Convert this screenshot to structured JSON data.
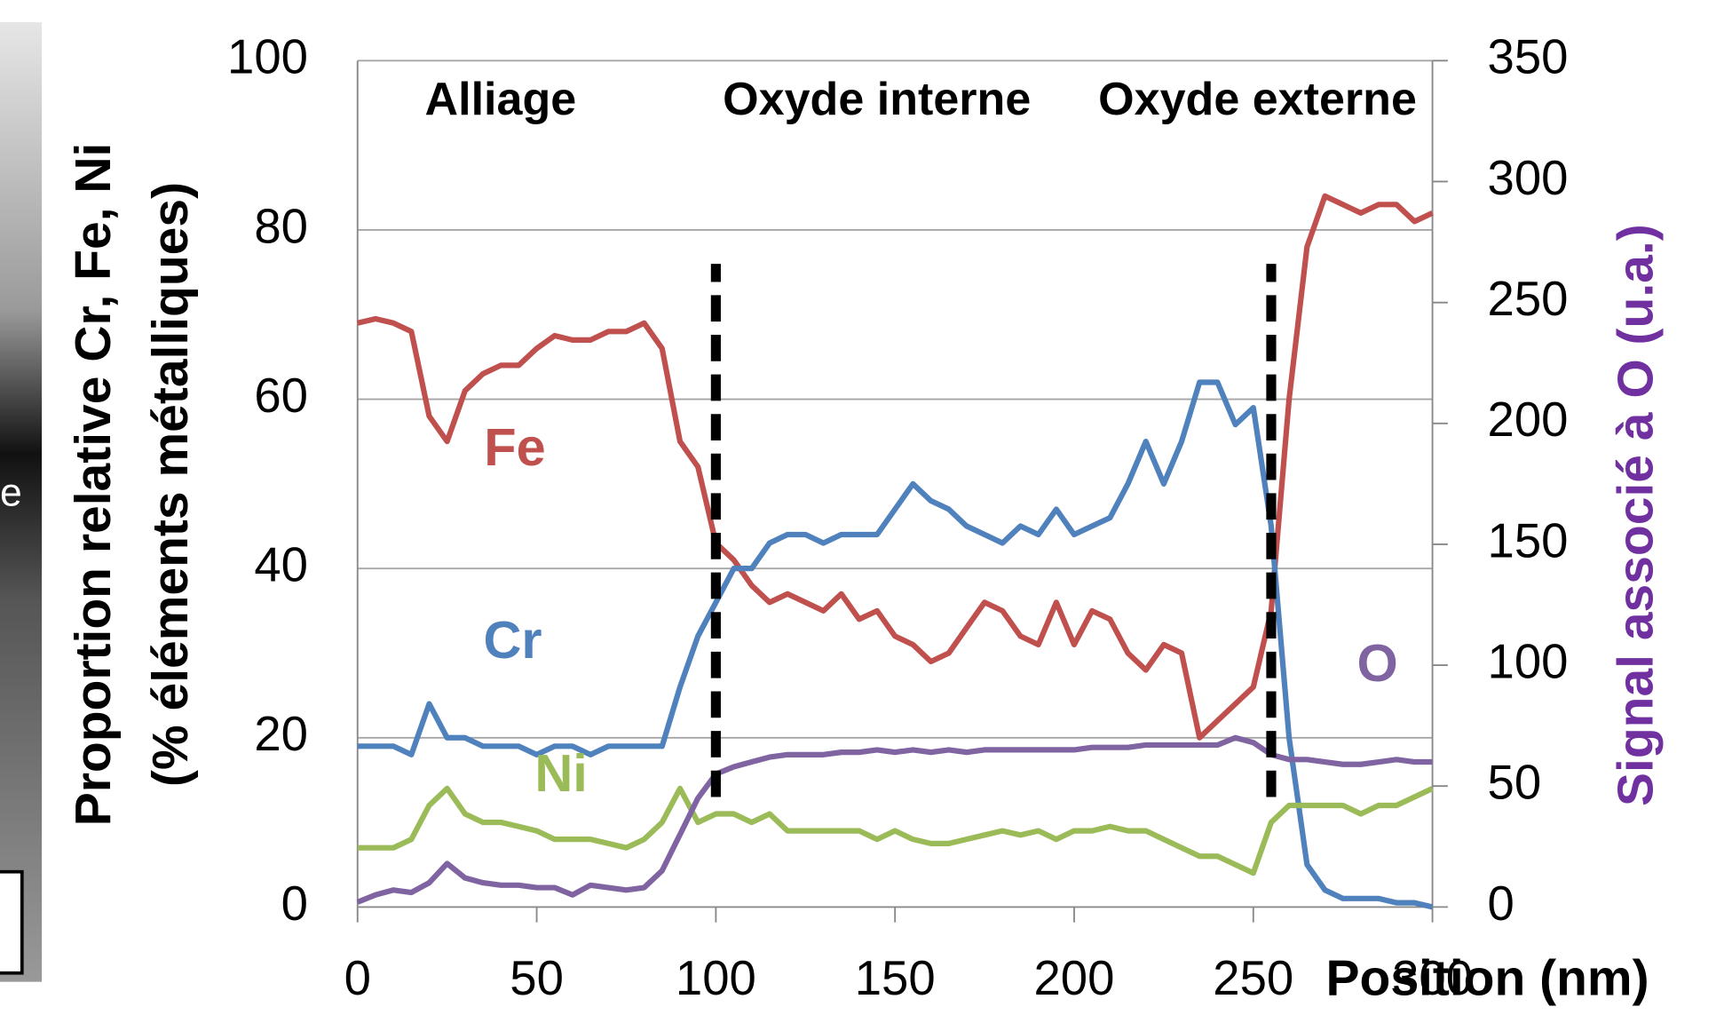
{
  "chart_data": {
    "type": "line",
    "y_title_line1": "Proportion relative Cr, Fe, Ni",
    "y_title_line2": "(% éléments métalliques)",
    "y2_title": "Signal associé à O (u.a.)",
    "x_title": "Position (nm)",
    "image_fragment_text": "e",
    "regions": [
      "Alliage",
      "Oxyde interne",
      "Oxyde externe"
    ],
    "boundaries": [
      100,
      255
    ],
    "boundary_span": [
      13,
      76
    ],
    "xlim": [
      0,
      300
    ],
    "xticks": [
      0,
      50,
      100,
      150,
      200,
      250,
      300
    ],
    "ylim": [
      0,
      100
    ],
    "yticks": [
      0,
      20,
      40,
      60,
      80,
      100
    ],
    "y2lim": [
      0,
      350
    ],
    "y2ticks": [
      0,
      50,
      100,
      150,
      200,
      250,
      300,
      350
    ],
    "grid": true,
    "x": [
      0,
      5,
      10,
      15,
      20,
      25,
      30,
      35,
      40,
      45,
      50,
      55,
      60,
      65,
      70,
      75,
      80,
      85,
      90,
      95,
      100,
      105,
      110,
      115,
      120,
      125,
      130,
      135,
      140,
      145,
      150,
      155,
      160,
      165,
      170,
      175,
      180,
      185,
      190,
      195,
      200,
      205,
      210,
      215,
      220,
      225,
      230,
      235,
      240,
      245,
      250,
      255,
      260,
      265,
      270,
      275,
      280,
      285,
      290,
      295,
      300
    ],
    "series": [
      {
        "name": "Fe",
        "color": "#c0504d",
        "values": [
          69,
          69.5,
          69,
          68,
          58,
          55,
          61,
          63,
          64,
          64,
          66,
          67.5,
          67,
          67,
          68,
          68,
          69,
          66,
          55,
          52,
          43,
          41,
          38,
          36,
          37,
          36,
          35,
          37,
          34,
          35,
          32,
          31,
          29,
          30,
          33,
          36,
          35,
          32,
          31,
          36,
          31,
          35,
          34,
          30,
          28,
          31,
          30,
          20,
          22,
          24,
          26,
          35,
          60,
          78,
          84,
          83,
          82,
          83,
          83,
          81,
          82
        ]
      },
      {
        "name": "Cr",
        "color": "#4f81bd",
        "values": [
          19,
          19,
          19,
          18,
          24,
          20,
          20,
          19,
          19,
          19,
          18,
          19,
          19,
          18,
          19,
          19,
          19,
          19,
          26,
          32,
          36,
          40,
          40,
          43,
          44,
          44,
          43,
          44,
          44,
          44,
          47,
          50,
          48,
          47,
          45,
          44,
          43,
          45,
          44,
          47,
          44,
          45,
          46,
          50,
          55,
          50,
          55,
          62,
          62,
          57,
          59,
          45,
          20,
          5,
          2,
          1,
          1,
          1,
          0.5,
          0.5,
          0
        ]
      },
      {
        "name": "Ni",
        "color": "#9bbb59",
        "values": [
          7,
          7,
          7,
          8,
          12,
          14,
          11,
          10,
          10,
          9.5,
          9,
          8,
          8,
          8,
          7.5,
          7,
          8,
          10,
          14,
          10,
          11,
          11,
          10,
          11,
          9,
          9,
          9,
          9,
          9,
          8,
          9,
          8,
          7.5,
          7.5,
          8,
          8.5,
          9,
          8.5,
          9,
          8,
          9,
          9,
          9.5,
          9,
          9,
          8,
          7,
          6,
          6,
          5,
          4,
          10,
          12,
          12,
          12,
          12,
          11,
          12,
          12,
          13,
          14
        ]
      },
      {
        "name": "O",
        "color": "#8064a2",
        "axis": "y2",
        "values": [
          2,
          5,
          7,
          6,
          10,
          18,
          12,
          10,
          9,
          9,
          8,
          8,
          5,
          9,
          8,
          7,
          8,
          15,
          30,
          45,
          55,
          58,
          60,
          62,
          63,
          63,
          63,
          64,
          64,
          65,
          64,
          65,
          64,
          65,
          64,
          65,
          65,
          65,
          65,
          65,
          65,
          66,
          66,
          66,
          67,
          67,
          67,
          67,
          67,
          70,
          68,
          63,
          61,
          61,
          60,
          59,
          59,
          60,
          61,
          60,
          60
        ]
      }
    ]
  }
}
